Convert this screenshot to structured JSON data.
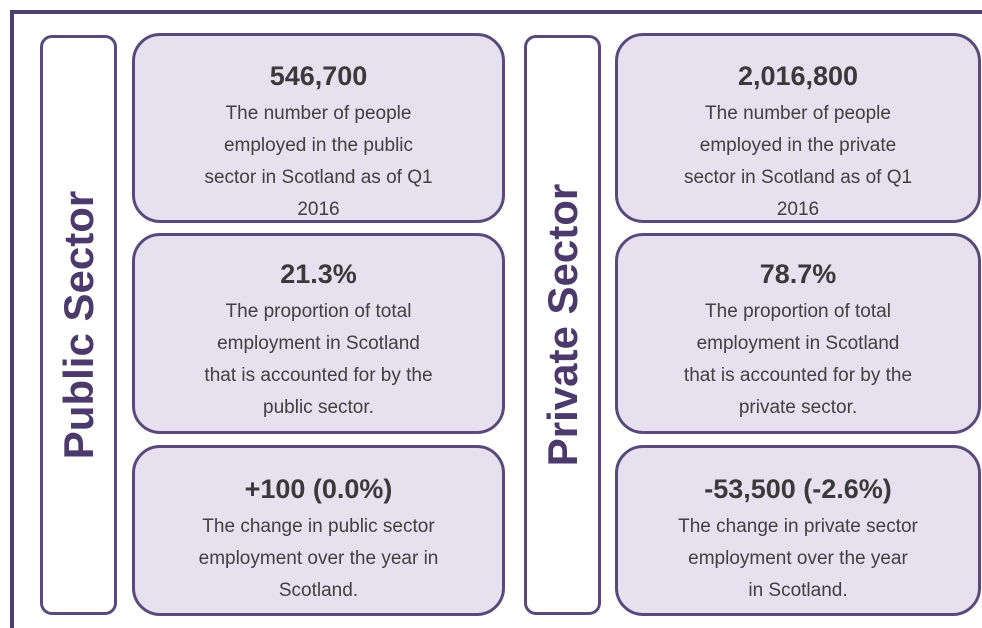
{
  "sections": [
    {
      "label": "Public Sector",
      "cards": [
        {
          "headline": "546,700",
          "lines": [
            "The number of people",
            "employed in the public",
            "sector in Scotland as of Q1",
            "2016"
          ]
        },
        {
          "headline": "21.3%",
          "lines": [
            "The proportion of total",
            "employment in Scotland",
            "that is accounted for by the",
            "public sector."
          ]
        },
        {
          "headline": "+100 (0.0%)",
          "lines": [
            "The change in public sector",
            "employment over the year in",
            "Scotland."
          ]
        }
      ]
    },
    {
      "label": "Private Sector",
      "cards": [
        {
          "headline": "2,016,800",
          "lines": [
            "The number of people",
            "employed in the private",
            "sector in Scotland as of Q1",
            "2016"
          ]
        },
        {
          "headline": "78.7%",
          "lines": [
            "The proportion of total",
            "employment in Scotland",
            "that is accounted for by the",
            "private sector."
          ]
        },
        {
          "headline": "-53,500 (-2.6%)",
          "lines": [
            "The change in private sector",
            "employment over the year",
            "in Scotland."
          ]
        }
      ]
    }
  ]
}
